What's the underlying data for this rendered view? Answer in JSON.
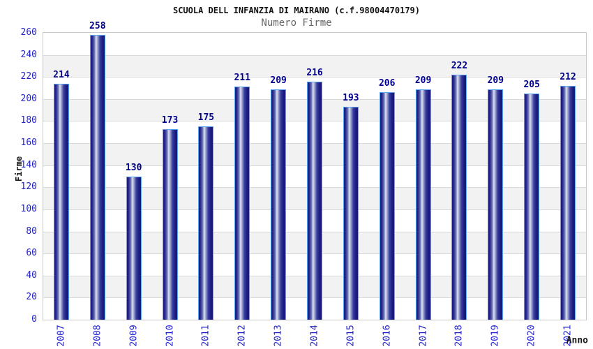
{
  "chart_data": {
    "type": "bar",
    "title": "SCUOLA DELL INFANZIA DI MAIRANO (c.f.98004470179)",
    "subtitle": "Numero Firme",
    "xlabel": "Anno",
    "ylabel": "Firme",
    "categories": [
      "2007",
      "2008",
      "2009",
      "2010",
      "2011",
      "2012",
      "2013",
      "2014",
      "2015",
      "2016",
      "2017",
      "2018",
      "2019",
      "2020",
      "2021"
    ],
    "values": [
      214,
      258,
      130,
      173,
      175,
      211,
      209,
      216,
      193,
      206,
      209,
      222,
      209,
      205,
      212
    ],
    "ylim": [
      0,
      260
    ],
    "yticks": [
      0,
      20,
      40,
      60,
      80,
      100,
      120,
      140,
      160,
      180,
      200,
      220,
      240,
      260
    ],
    "grid": "horizontal gridlines every 20 with alternating white/gray bands",
    "legend": "none",
    "colors": {
      "bar_edge_dark": "#181878",
      "bar_mid": "#3a3f9e",
      "bar_highlight": "#dde1f2",
      "bar_border": "#5ba6f0",
      "tick_label": "#2222cc",
      "value_label": "#00008b",
      "band_white": "#ffffff",
      "band_gray": "#f2f2f2",
      "grid_line": "#d9d9d9",
      "plot_border": "#c9c9c9",
      "title_color": "#111111",
      "subtitle_color": "#666666",
      "axis_title_color": "#1a1a1a"
    }
  }
}
